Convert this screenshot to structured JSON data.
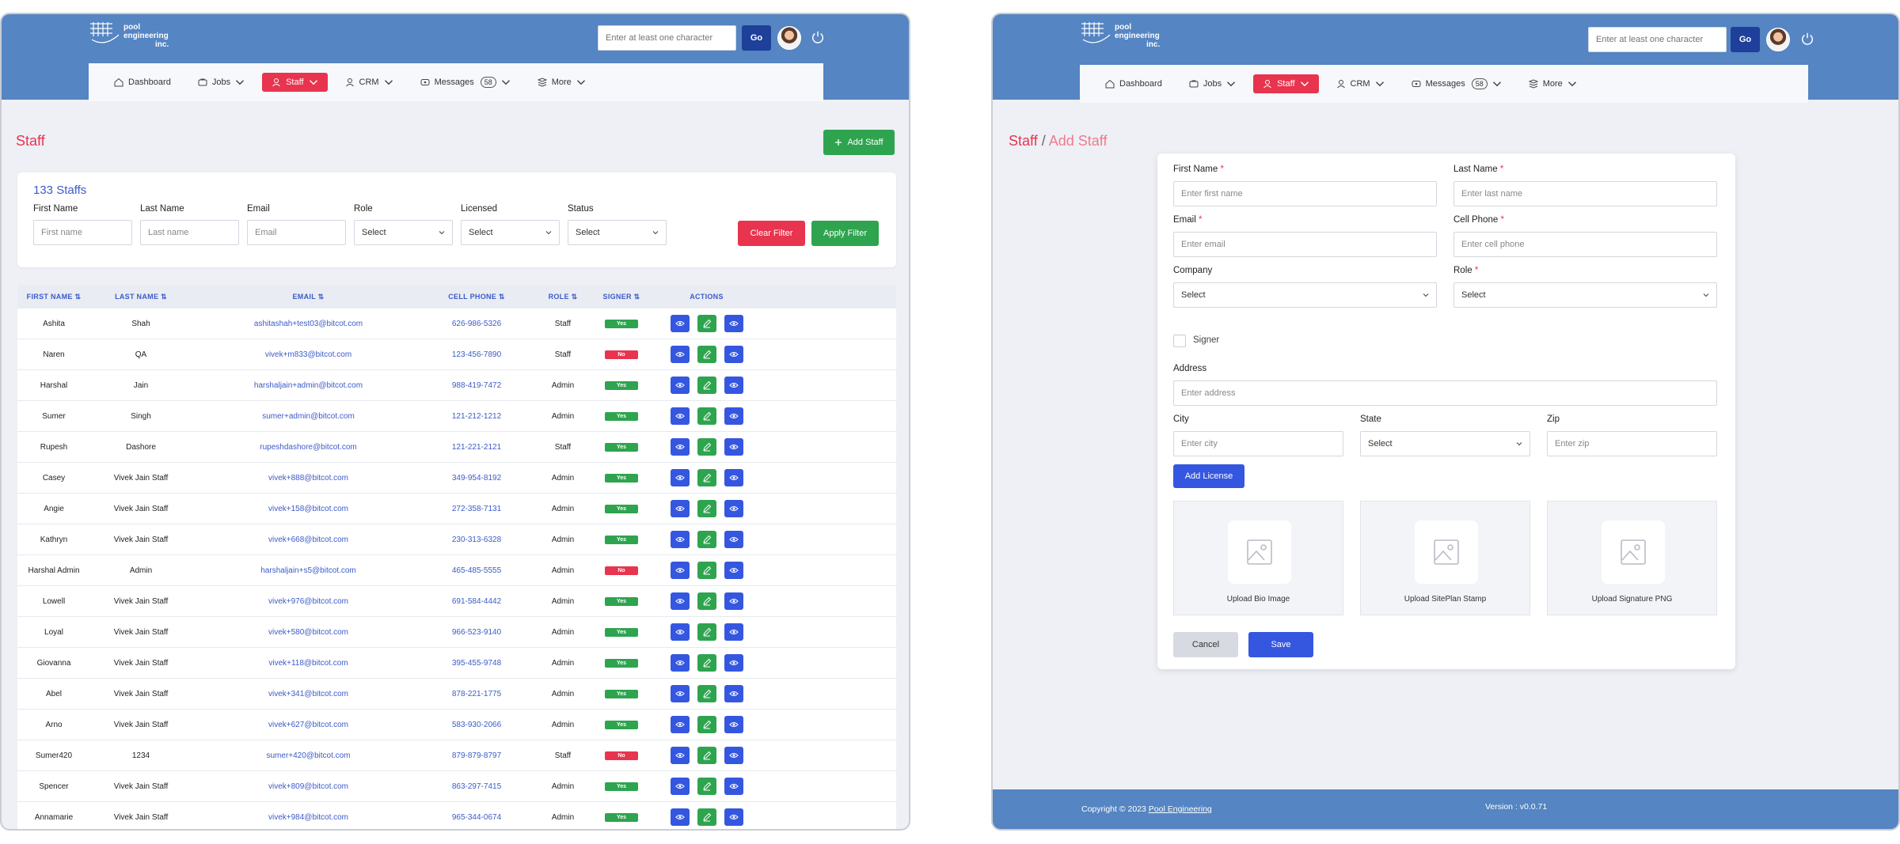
{
  "header": {
    "logo_lines": [
      "pool",
      "engineering",
      "inc."
    ],
    "search_placeholder": "Enter at least one character",
    "go_label": "Go"
  },
  "nav": [
    {
      "label": "Dashboard",
      "icon": "home-icon",
      "chevron": false
    },
    {
      "label": "Jobs",
      "icon": "jobs-icon",
      "chevron": true
    },
    {
      "label": "Staff",
      "icon": "staff-icon",
      "chevron": true,
      "active": true
    },
    {
      "label": "CRM",
      "icon": "user-icon",
      "chevron": true
    },
    {
      "label": "Messages",
      "icon": "messages-icon",
      "chevron": true,
      "badge": "58"
    },
    {
      "label": "More",
      "icon": "more-icon",
      "chevron": true
    }
  ],
  "staff_page": {
    "title": "Staff",
    "add_button": "Add Staff",
    "count": "133 Staffs",
    "filters": {
      "first_name_label": "First Name",
      "first_name_placeholder": "First name",
      "last_name_label": "Last Name",
      "last_name_placeholder": "Last name",
      "email_label": "Email",
      "email_placeholder": "Email",
      "role_label": "Role",
      "role_value": "Select",
      "licensed_label": "Licensed",
      "licensed_value": "Select",
      "status_label": "Status",
      "status_value": "Select",
      "clear_label": "Clear Filter",
      "apply_label": "Apply Filter"
    },
    "columns": [
      "FIRST NAME",
      "LAST NAME",
      "EMAIL",
      "CELL PHONE",
      "ROLE",
      "SIGNER",
      "ACTIONS"
    ],
    "rows": [
      [
        "Ashita",
        "Shah",
        "ashitashah+test03@bitcot.com",
        "626-986-5326",
        "Staff",
        "Yes"
      ],
      [
        "Naren",
        "QA",
        "vivek+m833@bitcot.com",
        "123-456-7890",
        "Staff",
        "No"
      ],
      [
        "Harshal",
        "Jain",
        "harshaljain+admin@bitcot.com",
        "988-419-7472",
        "Admin",
        "Yes"
      ],
      [
        "Sumer",
        "Singh",
        "sumer+admin@bitcot.com",
        "121-212-1212",
        "Admin",
        "Yes"
      ],
      [
        "Rupesh",
        "Dashore",
        "rupeshdashore@bitcot.com",
        "121-221-2121",
        "Staff",
        "Yes"
      ],
      [
        "Casey",
        "Vivek Jain Staff",
        "vivek+888@bitcot.com",
        "349-954-8192",
        "Admin",
        "Yes"
      ],
      [
        "Angie",
        "Vivek Jain Staff",
        "vivek+158@bitcot.com",
        "272-358-7131",
        "Admin",
        "Yes"
      ],
      [
        "Kathryn",
        "Vivek Jain Staff",
        "vivek+668@bitcot.com",
        "230-313-6328",
        "Admin",
        "Yes"
      ],
      [
        "Harshal Admin",
        "Admin",
        "harshaljain+s5@bitcot.com",
        "465-485-5555",
        "Admin",
        "No"
      ],
      [
        "Lowell",
        "Vivek Jain Staff",
        "vivek+976@bitcot.com",
        "691-584-4442",
        "Admin",
        "Yes"
      ],
      [
        "Loyal",
        "Vivek Jain Staff",
        "vivek+580@bitcot.com",
        "966-523-9140",
        "Admin",
        "Yes"
      ],
      [
        "Giovanna",
        "Vivek Jain Staff",
        "vivek+118@bitcot.com",
        "395-455-9748",
        "Admin",
        "Yes"
      ],
      [
        "Abel",
        "Vivek Jain Staff",
        "vivek+341@bitcot.com",
        "878-221-1775",
        "Admin",
        "Yes"
      ],
      [
        "Arno",
        "Vivek Jain Staff",
        "vivek+627@bitcot.com",
        "583-930-2066",
        "Admin",
        "Yes"
      ],
      [
        "Sumer420",
        "1234",
        "sumer+420@bitcot.com",
        "879-879-8797",
        "Staff",
        "No"
      ],
      [
        "Spencer",
        "Vivek Jain Staff",
        "vivek+809@bitcot.com",
        "863-297-7415",
        "Admin",
        "Yes"
      ],
      [
        "Annamarie",
        "Vivek Jain Staff",
        "vivek+984@bitcot.com",
        "965-344-0674",
        "Admin",
        "Yes"
      ]
    ]
  },
  "add_staff_page": {
    "breadcrumb_root": "Staff",
    "breadcrumb_sep": "/",
    "breadcrumb_current": "Add Staff",
    "fields": {
      "first_name_label": "First Name",
      "first_name_placeholder": "Enter first name",
      "last_name_label": "Last Name",
      "last_name_placeholder": "Enter last name",
      "email_label": "Email",
      "email_placeholder": "Enter email",
      "cell_label": "Cell Phone",
      "cell_placeholder": "Enter cell phone",
      "company_label": "Company",
      "company_value": "Select",
      "role_label": "Role",
      "role_value": "Select",
      "signer_label": "Signer",
      "address_label": "Address",
      "address_placeholder": "Enter address",
      "city_label": "City",
      "city_placeholder": "Enter city",
      "state_label": "State",
      "state_value": "Select",
      "zip_label": "Zip",
      "zip_placeholder": "Enter zip",
      "required_mark": "*"
    },
    "add_license": "Add License",
    "uploads": [
      "Upload Bio Image",
      "Upload SitePlan Stamp",
      "Upload Signature PNG"
    ],
    "cancel": "Cancel",
    "save": "Save"
  },
  "footer": {
    "copyright": "Copyright © 2023",
    "company_link": "Pool Engineering",
    "version": "Version : v0.0.71"
  },
  "colors": {
    "header_blue": "#5585c2",
    "accent_red": "#e8344e",
    "success_green": "#2ea44f",
    "primary_blue": "#3557e0",
    "go_navy": "#1e3f9a"
  }
}
